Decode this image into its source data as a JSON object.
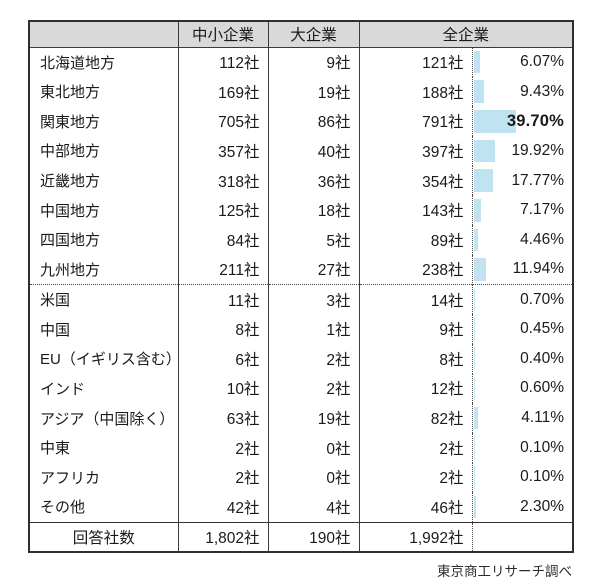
{
  "chart_data": {
    "type": "table",
    "columns": [
      "",
      "中小企業",
      "大企業",
      "全企業"
    ],
    "unit": "社",
    "rows": [
      {
        "label": "北海道地方",
        "sme": "112社",
        "large": "9社",
        "all": "121社",
        "pct": "6.07%",
        "pct_value": 6.07,
        "bold": false,
        "section": "domestic"
      },
      {
        "label": "東北地方",
        "sme": "169社",
        "large": "19社",
        "all": "188社",
        "pct": "9.43%",
        "pct_value": 9.43,
        "bold": false,
        "section": "domestic"
      },
      {
        "label": "関東地方",
        "sme": "705社",
        "large": "86社",
        "all": "791社",
        "pct": "39.70%",
        "pct_value": 39.7,
        "bold": true,
        "section": "domestic"
      },
      {
        "label": "中部地方",
        "sme": "357社",
        "large": "40社",
        "all": "397社",
        "pct": "19.92%",
        "pct_value": 19.92,
        "bold": false,
        "section": "domestic"
      },
      {
        "label": "近畿地方",
        "sme": "318社",
        "large": "36社",
        "all": "354社",
        "pct": "17.77%",
        "pct_value": 17.77,
        "bold": false,
        "section": "domestic"
      },
      {
        "label": "中国地方",
        "sme": "125社",
        "large": "18社",
        "all": "143社",
        "pct": "7.17%",
        "pct_value": 7.17,
        "bold": false,
        "section": "domestic"
      },
      {
        "label": "四国地方",
        "sme": "84社",
        "large": "5社",
        "all": "89社",
        "pct": "4.46%",
        "pct_value": 4.46,
        "bold": false,
        "section": "domestic"
      },
      {
        "label": "九州地方",
        "sme": "211社",
        "large": "27社",
        "all": "238社",
        "pct": "11.94%",
        "pct_value": 11.94,
        "bold": false,
        "section": "domestic"
      },
      {
        "label": "米国",
        "sme": "11社",
        "large": "3社",
        "all": "14社",
        "pct": "0.70%",
        "pct_value": 0.7,
        "bold": false,
        "section": "overseas"
      },
      {
        "label": "中国",
        "sme": "8社",
        "large": "1社",
        "all": "9社",
        "pct": "0.45%",
        "pct_value": 0.45,
        "bold": false,
        "section": "overseas"
      },
      {
        "label": "EU（イギリス含む）",
        "sme": "6社",
        "large": "2社",
        "all": "8社",
        "pct": "0.40%",
        "pct_value": 0.4,
        "bold": false,
        "section": "overseas"
      },
      {
        "label": "インド",
        "sme": "10社",
        "large": "2社",
        "all": "12社",
        "pct": "0.60%",
        "pct_value": 0.6,
        "bold": false,
        "section": "overseas"
      },
      {
        "label": "アジア（中国除く）",
        "sme": "63社",
        "large": "19社",
        "all": "82社",
        "pct": "4.11%",
        "pct_value": 4.11,
        "bold": false,
        "section": "overseas"
      },
      {
        "label": "中東",
        "sme": "2社",
        "large": "0社",
        "all": "2社",
        "pct": "0.10%",
        "pct_value": 0.1,
        "bold": false,
        "section": "overseas"
      },
      {
        "label": "アフリカ",
        "sme": "2社",
        "large": "0社",
        "all": "2社",
        "pct": "0.10%",
        "pct_value": 0.1,
        "bold": false,
        "section": "overseas"
      },
      {
        "label": "その他",
        "sme": "42社",
        "large": "4社",
        "all": "46社",
        "pct": "2.30%",
        "pct_value": 2.3,
        "bold": false,
        "section": "overseas"
      }
    ],
    "total": {
      "label": "回答社数",
      "sme": "1,802社",
      "large": "190社",
      "all": "1,992社",
      "pct": ""
    },
    "source": "東京商工リサーチ調べ",
    "colors": {
      "header_bg": "#d9d9d9",
      "bar": "#bfe3f1",
      "border": "#3b3b3b"
    },
    "layout": {
      "grid": false,
      "legend": false,
      "bar_column": "全企業 %",
      "bar_max_value": 39.7
    }
  }
}
